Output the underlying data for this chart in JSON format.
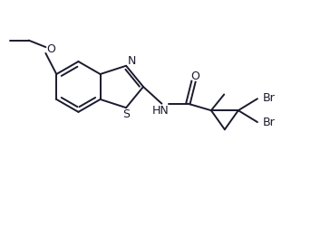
{
  "bg_color": "#ffffff",
  "line_color": "#1a1a2e",
  "line_width": 1.4,
  "font_size": 8.5,
  "fig_width": 3.43,
  "fig_height": 2.6,
  "dpi": 100,
  "xlim": [
    0,
    10
  ],
  "ylim": [
    0,
    7.6
  ]
}
